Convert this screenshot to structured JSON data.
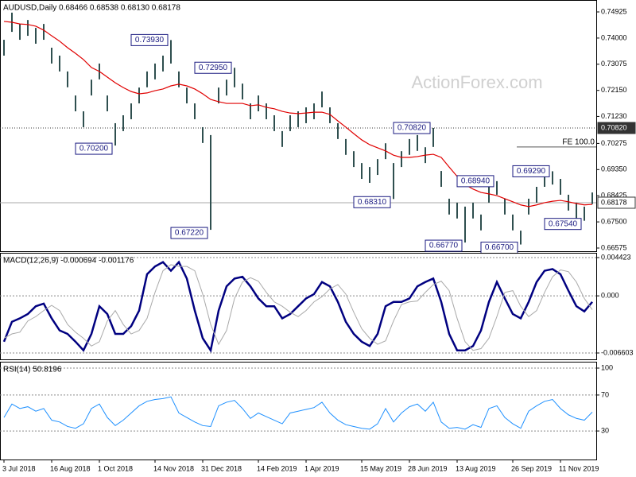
{
  "watermark": "ActionForex.com",
  "chart_data": [
    {
      "type": "ohlc",
      "title": "AUDUSD,Daily  0.68466 0.68538 0.68130 0.68178",
      "bar_color": "#2f4f4f",
      "categories": [
        "3 Jul 2018",
        null,
        null,
        null,
        null,
        null,
        "16 Aug 2018",
        null,
        null,
        null,
        null,
        null,
        "1 Oct 2018",
        null,
        null,
        null,
        null,
        null,
        null,
        "14 Nov 2018",
        null,
        null,
        null,
        null,
        null,
        "31 Dec 2018",
        null,
        null,
        null,
        null,
        null,
        null,
        "14 Feb 2019",
        null,
        null,
        null,
        null,
        null,
        "1 Apr 2019",
        null,
        null,
        null,
        null,
        null,
        null,
        "15 May 2019",
        null,
        null,
        null,
        null,
        null,
        "28 Jun 2019",
        null,
        null,
        null,
        null,
        null,
        "13 Aug 2019",
        null,
        null,
        null,
        null,
        null,
        null,
        "26 Sep 2019",
        null,
        null,
        null,
        null,
        null,
        "11 Nov 2019",
        null,
        null,
        null,
        null
      ],
      "high": [
        0.7394,
        0.749,
        0.745,
        0.7464,
        0.7436,
        0.745,
        0.7366,
        0.7338,
        0.7282,
        0.7197,
        0.7141,
        0.7253,
        0.731,
        0.7197,
        0.7099,
        0.7127,
        0.7169,
        0.7225,
        0.7282,
        0.731,
        0.7338,
        0.7393,
        0.7282,
        0.7225,
        0.7169,
        0.7085,
        0.7057,
        0.7225,
        0.7253,
        0.7295,
        0.7239,
        0.7169,
        0.7197,
        0.7169,
        0.7127,
        0.7071,
        0.7127,
        0.7141,
        0.7155,
        0.7169,
        0.7211,
        0.7155,
        0.7099,
        0.7043,
        0.7,
        0.6958,
        0.6944,
        0.6972,
        0.7028,
        0.6958,
        0.7,
        0.7043,
        0.7057,
        0.7014,
        0.7082,
        0.693,
        0.6832,
        0.6818,
        0.6804,
        0.6818,
        0.6776,
        0.6874,
        0.6894,
        0.6832,
        0.6776,
        0.6719,
        0.6832,
        0.6874,
        0.692,
        0.6929,
        0.6902,
        0.6846,
        0.6818,
        0.6804,
        0.6854
      ],
      "low": [
        0.7338,
        0.7422,
        0.7394,
        0.7408,
        0.738,
        0.7394,
        0.731,
        0.7282,
        0.7226,
        0.7141,
        0.7085,
        0.7197,
        0.7254,
        0.7141,
        0.702,
        0.7071,
        0.7113,
        0.7169,
        0.7226,
        0.7254,
        0.7282,
        0.731,
        0.7226,
        0.7169,
        0.7113,
        0.7029,
        0.6722,
        0.7169,
        0.7197,
        0.7226,
        0.7183,
        0.7113,
        0.7141,
        0.7113,
        0.7071,
        0.7015,
        0.7071,
        0.7085,
        0.7099,
        0.7113,
        0.7155,
        0.7099,
        0.7043,
        0.6987,
        0.6944,
        0.6902,
        0.6888,
        0.6916,
        0.6972,
        0.6831,
        0.6944,
        0.6987,
        0.7001,
        0.6958,
        0.7015,
        0.6874,
        0.6776,
        0.6762,
        0.6677,
        0.6762,
        0.672,
        0.6818,
        0.6846,
        0.6776,
        0.672,
        0.667,
        0.6776,
        0.6818,
        0.6874,
        0.6882,
        0.6846,
        0.679,
        0.6762,
        0.6754,
        0.6813
      ],
      "high_value_labels": [
        null,
        null,
        null,
        null,
        null,
        null,
        null,
        null,
        null,
        null,
        null,
        null,
        null,
        null,
        null,
        null,
        null,
        null,
        null,
        null,
        null,
        "0.73930",
        null,
        null,
        null,
        null,
        null,
        null,
        null,
        "0.72950",
        null,
        null,
        null,
        null,
        null,
        null,
        null,
        null,
        null,
        null,
        null,
        null,
        null,
        null,
        null,
        null,
        null,
        null,
        null,
        null,
        null,
        null,
        null,
        null,
        "0.70820",
        null,
        null,
        null,
        null,
        null,
        null,
        null,
        "0.68940",
        null,
        null,
        null,
        null,
        null,
        null,
        "0.69290",
        null,
        null,
        null,
        null,
        null
      ],
      "low_value_labels": [
        null,
        null,
        null,
        null,
        null,
        null,
        null,
        null,
        null,
        null,
        null,
        null,
        null,
        null,
        "0.70200",
        null,
        null,
        null,
        null,
        null,
        null,
        null,
        null,
        null,
        null,
        null,
        "0.67220",
        null,
        null,
        null,
        null,
        null,
        null,
        null,
        null,
        null,
        null,
        null,
        null,
        null,
        null,
        null,
        null,
        null,
        null,
        null,
        null,
        null,
        null,
        "0.68310",
        null,
        null,
        null,
        null,
        null,
        null,
        null,
        null,
        "0.66770",
        null,
        null,
        null,
        null,
        null,
        null,
        "0.66700",
        null,
        null,
        null,
        null,
        null,
        null,
        null,
        "0.67540",
        null
      ],
      "ma": {
        "color": "#e00000",
        "values": [
          0.7459,
          0.7456,
          0.745,
          0.7448,
          0.7442,
          0.7428,
          0.7408,
          0.7389,
          0.7366,
          0.7346,
          0.7324,
          0.7296,
          0.7282,
          0.7262,
          0.7242,
          0.7225,
          0.7211,
          0.7203,
          0.7206,
          0.7214,
          0.722,
          0.7231,
          0.7237,
          0.7231,
          0.722,
          0.7203,
          0.7183,
          0.7175,
          0.7169,
          0.7169,
          0.7169,
          0.7161,
          0.7164,
          0.7155,
          0.715,
          0.7141,
          0.7135,
          0.7133,
          0.7135,
          0.7138,
          0.7138,
          0.713,
          0.7107,
          0.7085,
          0.7062,
          0.704,
          0.7023,
          0.7012,
          0.7001,
          0.6986,
          0.6978,
          0.6978,
          0.6981,
          0.6986,
          0.6989,
          0.6978,
          0.6944,
          0.6911,
          0.6882,
          0.6866,
          0.6854,
          0.6849,
          0.6843,
          0.6832,
          0.6821,
          0.681,
          0.6804,
          0.681,
          0.6818,
          0.6823,
          0.6826,
          0.6821,
          0.6815,
          0.681,
          0.6812
        ]
      },
      "levels": [
        {
          "value": 0.7082,
          "label": "0.70820",
          "color": "#333333",
          "dashed": true,
          "tag_fill": "#333333",
          "tag_text": "#ffffff"
        },
        {
          "value": 0.68178,
          "label": "0.68178",
          "color": "#aaaaaa",
          "dashed": false,
          "tag_fill": "#ffffff",
          "tag_text": "#000000"
        }
      ],
      "fe": {
        "label": "FE 100.0",
        "value": 0.7015,
        "color": "#555555"
      },
      "ylim": [
        0.66575,
        0.74925
      ],
      "yticks": [
        0.74925,
        {
          "value": 0.74,
          "label": "0.74000"
        },
        0.73075,
        {
          "value": 0.7215,
          "label": "0.72150"
        },
        {
          "value": 0.7123,
          "label": "0.71230"
        },
        0.70275,
        {
          "value": 0.6935,
          "label": "0.69350"
        },
        0.68425,
        {
          "value": 0.675,
          "label": "0.67500"
        },
        0.66575
      ],
      "grid": false
    },
    {
      "type": "line",
      "title": "MACD(12,26,9) -0.000694 -0.001176",
      "series": [
        {
          "color": "#000080",
          "width": 2.5,
          "values": [
            -0.0053,
            -0.003,
            -0.0026,
            -0.0021,
            -0.0012,
            -0.0009,
            -0.0026,
            -0.004,
            -0.0044,
            -0.0053,
            -0.0063,
            -0.0044,
            -0.0012,
            -0.0021,
            -0.0044,
            -0.0044,
            -0.0035,
            -0.0017,
            0.0025,
            0.0034,
            0.0039,
            0.0029,
            0.0039,
            0.002,
            -0.0017,
            -0.0049,
            -0.0063,
            -0.0017,
            0.0011,
            0.002,
            0.0022,
            0.0011,
            -0.0003,
            -0.0012,
            -0.0012,
            -0.0026,
            -0.0021,
            -0.0012,
            -0.0003,
            0.0002,
            0.0016,
            0.0011,
            -0.0007,
            -0.003,
            -0.0044,
            -0.0053,
            -0.0058,
            -0.0044,
            -0.0012,
            -0.0007,
            -0.0007,
            -0.0003,
            0.0011,
            0.0016,
            0.002,
            -0.0007,
            -0.0044,
            -0.0063,
            -0.0063,
            -0.0058,
            -0.004,
            -0.0007,
            0.0016,
            -0.0003,
            -0.0021,
            -0.0026,
            -0.0007,
            0.0016,
            0.0029,
            0.0031,
            0.0025,
            0.0006,
            -0.0012,
            -0.0018,
            -0.0007
          ]
        },
        {
          "color": "#a9a9a9",
          "width": 1,
          "values": [
            -0.0049,
            -0.0044,
            -0.0042,
            -0.0029,
            -0.0024,
            -0.0017,
            -0.0011,
            -0.0017,
            -0.0033,
            -0.0042,
            -0.0049,
            -0.0058,
            -0.0053,
            -0.0029,
            -0.0017,
            -0.0033,
            -0.0044,
            -0.004,
            -0.0026,
            0.0004,
            0.0029,
            0.0036,
            0.0034,
            0.0034,
            0.0029,
            0.0002,
            -0.0033,
            -0.0056,
            -0.004,
            -0.0003,
            0.0016,
            0.0021,
            0.0017,
            0.0004,
            -0.0007,
            -0.0012,
            -0.0019,
            -0.0024,
            -0.0017,
            -0.0007,
            -0.0001,
            0.0008,
            0.0013,
            0.0002,
            -0.0019,
            -0.0038,
            -0.0049,
            -0.0056,
            -0.0052,
            -0.0029,
            -0.001,
            -0.0007,
            -0.0006,
            0.0004,
            0.0013,
            0.0017,
            0.0006,
            -0.0026,
            -0.0053,
            -0.0063,
            -0.0061,
            -0.0049,
            -0.0024,
            0.0004,
            0.0006,
            -0.0012,
            -0.0024,
            -0.0017,
            0.0004,
            0.0022,
            0.003,
            0.0028,
            0.0016,
            -0.0003,
            -0.0016
          ]
        }
      ],
      "ylim": [
        -0.006603,
        0.004423
      ],
      "yticks": [
        0.004423,
        {
          "value": 0,
          "label": "0.000"
        },
        -0.006603
      ],
      "grid": true
    },
    {
      "type": "line",
      "title": "RSI(14) 50.8196",
      "series": [
        {
          "color": "#1e90ff",
          "width": 1,
          "values": [
            45,
            60,
            55,
            57,
            52,
            55,
            42,
            40,
            35,
            33,
            38,
            55,
            60,
            45,
            36,
            42,
            50,
            58,
            63,
            65,
            66,
            68,
            50,
            45,
            40,
            36,
            35,
            58,
            62,
            64,
            55,
            44,
            50,
            46,
            42,
            38,
            50,
            52,
            54,
            56,
            62,
            50,
            42,
            37,
            35,
            33,
            32,
            38,
            55,
            40,
            50,
            57,
            60,
            52,
            62,
            40,
            33,
            34,
            32,
            37,
            34,
            55,
            58,
            45,
            38,
            33,
            52,
            58,
            63,
            65,
            55,
            48,
            44,
            42,
            51
          ]
        }
      ],
      "ylim": [
        0,
        100
      ],
      "yticks": [
        100,
        70,
        30
      ],
      "grid": true
    }
  ]
}
